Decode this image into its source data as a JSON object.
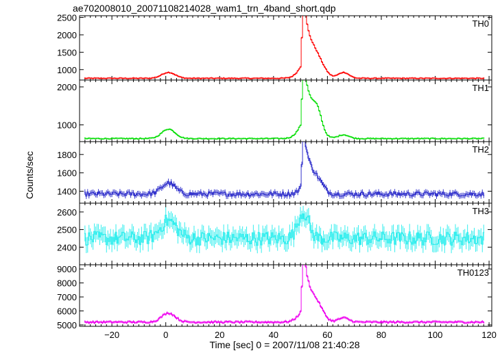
{
  "title": "ae702008010_20071108214028_wam1_trn_4band_short.qdp",
  "chart_data": {
    "type": "line",
    "style": "step histogram with vertical error bars",
    "xlabel": "Time [sec] 0 = 2007/11/08 21:40:28",
    "ylabel": "Counts/sec",
    "xlim": [
      -32,
      121
    ],
    "x_ticks": [
      -20,
      0,
      20,
      40,
      60,
      80,
      100,
      120
    ],
    "x_tick_labels": [
      "−20",
      "0",
      "20",
      "40",
      "60",
      "80",
      "100",
      "120"
    ],
    "grid": false,
    "panels": [
      {
        "name": "TH0",
        "color": "#ff0000",
        "ylim": [
          700,
          2550
        ],
        "y_ticks": [
          1000,
          1500,
          2000,
          2500
        ],
        "baseline": 750,
        "noise": 12,
        "error": 25,
        "features": [
          {
            "t": 1,
            "amp": 170,
            "w": 2.5
          },
          {
            "t": 50.5,
            "amp": 900,
            "w": 0.8
          },
          {
            "t": 51.2,
            "amp": 1750,
            "w": 0.6
          },
          {
            "t": 53.5,
            "amp": 650,
            "w": 3
          },
          {
            "t": 57,
            "amp": 250,
            "w": 2.5
          },
          {
            "t": 66,
            "amp": 170,
            "w": 2
          }
        ]
      },
      {
        "name": "TH1",
        "color": "#00dd00",
        "ylim": [
          560,
          2180
        ],
        "y_ticks": [
          1000,
          2000
        ],
        "baseline": 640,
        "noise": 12,
        "error": 22,
        "features": [
          {
            "t": 1,
            "amp": 250,
            "w": 2.5
          },
          {
            "t": 50.5,
            "amp": 700,
            "w": 0.8
          },
          {
            "t": 51.2,
            "amp": 1500,
            "w": 0.6
          },
          {
            "t": 53.5,
            "amp": 700,
            "w": 3
          },
          {
            "t": 56.5,
            "amp": 350,
            "w": 1.5
          },
          {
            "t": 66,
            "amp": 100,
            "w": 2
          }
        ]
      },
      {
        "name": "TH2",
        "color": "#3333cc",
        "ylim": [
          1270,
          1940
        ],
        "y_ticks": [
          1400,
          1600,
          1800
        ],
        "baseline": 1370,
        "noise": 25,
        "error": 30,
        "features": [
          {
            "t": 1,
            "amp": 120,
            "w": 2.5
          },
          {
            "t": 50.5,
            "amp": 300,
            "w": 0.8
          },
          {
            "t": 51.2,
            "amp": 560,
            "w": 0.6
          },
          {
            "t": 53.5,
            "amp": 170,
            "w": 2.5
          },
          {
            "t": 57,
            "amp": 80,
            "w": 2
          }
        ]
      },
      {
        "name": "TH3",
        "color": "#33eeee",
        "ylim": [
          2300,
          2650
        ],
        "y_ticks": [
          2400,
          2500,
          2600
        ],
        "baseline": 2450,
        "noise": 40,
        "error": 45,
        "features": [
          {
            "t": 1,
            "amp": 100,
            "w": 3
          },
          {
            "t": 51,
            "amp": 150,
            "w": 2
          }
        ]
      },
      {
        "name": "TH0123",
        "color": "#ee00ee",
        "ylim": [
          4900,
          9300
        ],
        "y_ticks": [
          5000,
          6000,
          7000,
          8000,
          9000
        ],
        "baseline": 5200,
        "noise": 60,
        "error": 90,
        "features": [
          {
            "t": 1,
            "amp": 650,
            "w": 2.5
          },
          {
            "t": 50.5,
            "amp": 2000,
            "w": 0.8
          },
          {
            "t": 51.2,
            "amp": 3900,
            "w": 0.6
          },
          {
            "t": 53.5,
            "amp": 1400,
            "w": 3
          },
          {
            "t": 57,
            "amp": 500,
            "w": 2
          },
          {
            "t": 66,
            "amp": 300,
            "w": 2
          }
        ]
      }
    ]
  }
}
